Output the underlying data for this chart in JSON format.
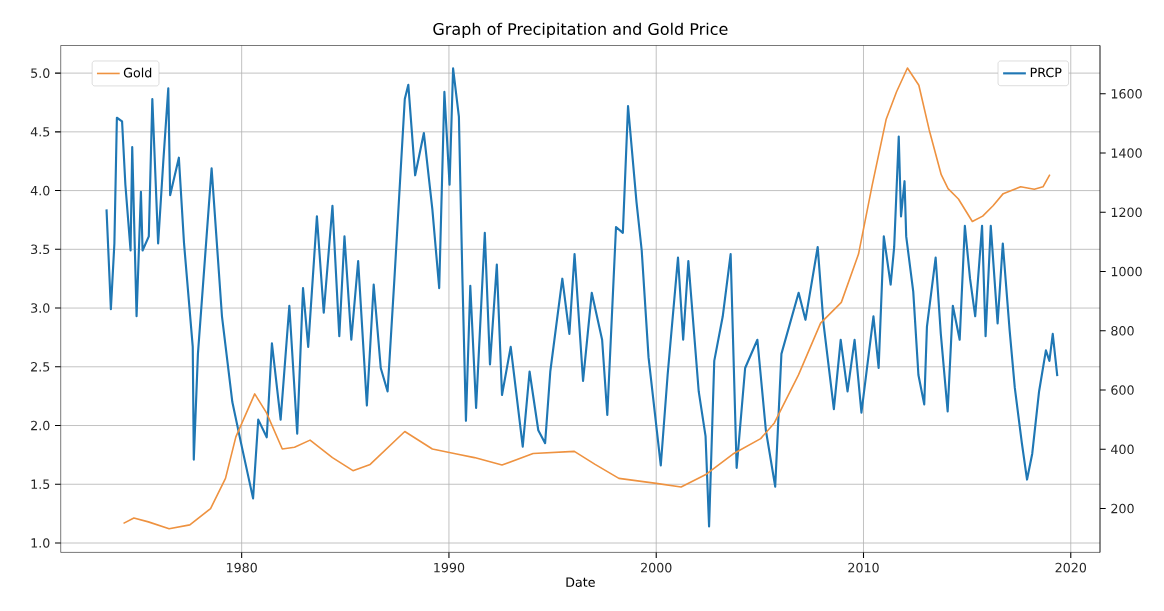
{
  "chart_data": {
    "type": "line",
    "title": "Graph of Precipitation and Gold Price",
    "xlabel": "Date",
    "xlim": [
      1971.27,
      2021.41
    ],
    "xticks": [
      1980,
      1990,
      2000,
      2010,
      2020
    ],
    "ylim": [
      0.92,
      5.235
    ],
    "yticks": [
      {
        "value": 1,
        "label": "1.0"
      },
      1.5,
      {
        "value": 2,
        "label": "2.0"
      },
      2.5,
      {
        "value": 3,
        "label": "3.0"
      },
      3.5,
      {
        "value": 4,
        "label": "4.0"
      },
      4.5,
      {
        "value": 5,
        "label": "5.0"
      }
    ],
    "y2lim": [
      52,
      1763
    ],
    "y2ticks": [
      200,
      400,
      600,
      800,
      1000,
      1200,
      1400,
      1600
    ],
    "grid": true,
    "legend": "top",
    "series": [
      {
        "name": "PRCP",
        "color": "#1f77b4",
        "axis": "y",
        "x": [
          1973.48,
          1973.69,
          1973.86,
          1973.98,
          1974.23,
          1974.39,
          1974.64,
          1974.72,
          1974.93,
          1975.14,
          1975.22,
          1975.52,
          1975.69,
          1975.97,
          1976.22,
          1976.46,
          1976.55,
          1976.97,
          1977.22,
          1977.64,
          1977.69,
          1977.89,
          1978.55,
          1979.05,
          1979.55,
          1979.97,
          1980.55,
          1980.8,
          1981.21,
          1981.46,
          1981.88,
          1982.3,
          1982.68,
          1982.96,
          1983.21,
          1983.63,
          1983.96,
          1984.38,
          1984.71,
          1984.96,
          1985.29,
          1985.62,
          1986.04,
          1986.37,
          1986.71,
          1987.04,
          1987.37,
          1987.87,
          1988.04,
          1988.37,
          1988.79,
          1989.2,
          1989.53,
          1989.78,
          1990.03,
          1990.2,
          1990.48,
          1990.65,
          1990.82,
          1991.03,
          1991.31,
          1991.73,
          1991.98,
          1992.31,
          1992.56,
          1992.98,
          1993.56,
          1993.89,
          1994.31,
          1994.64,
          1994.89,
          1995.47,
          1995.81,
          1996.06,
          1996.47,
          1996.89,
          1997.39,
          1997.64,
          1998.06,
          1998.39,
          1998.64,
          1999.05,
          1999.3,
          1999.63,
          2000.22,
          2000.55,
          2001.05,
          2001.3,
          2001.55,
          2002.05,
          2002.38,
          2002.55,
          2002.8,
          2003.21,
          2003.59,
          2003.88,
          2004.29,
          2004.88,
          2005.29,
          2005.74,
          2006.04,
          2006.87,
          2007.2,
          2007.79,
          2008.07,
          2008.57,
          2008.9,
          2009.23,
          2009.57,
          2009.9,
          2010.48,
          2010.73,
          2010.98,
          2011.31,
          2011.48,
          2011.7,
          2011.81,
          2011.98,
          2012.06,
          2012.4,
          2012.65,
          2012.93,
          2013.06,
          2013.48,
          2013.73,
          2014.06,
          2014.31,
          2014.64,
          2014.89,
          2015.14,
          2015.39,
          2015.72,
          2015.89,
          2016.14,
          2016.47,
          2016.72,
          2017.05,
          2017.3,
          2017.64,
          2017.89,
          2018.14,
          2018.47,
          2018.8,
          2018.97,
          2019.13,
          2019.35
        ],
        "values": [
          3.84,
          2.99,
          3.55,
          4.62,
          4.59,
          4.05,
          3.49,
          4.37,
          2.93,
          3.99,
          3.49,
          3.61,
          4.78,
          3.55,
          4.25,
          4.87,
          3.96,
          4.28,
          3.55,
          2.67,
          1.71,
          2.61,
          4.19,
          2.93,
          2.2,
          1.85,
          1.38,
          2.05,
          1.9,
          2.7,
          2.05,
          3.02,
          1.93,
          3.17,
          2.67,
          3.78,
          2.96,
          3.87,
          2.76,
          3.61,
          2.73,
          3.4,
          2.17,
          3.2,
          2.49,
          2.29,
          3.25,
          4.78,
          4.9,
          4.13,
          4.49,
          3.84,
          3.17,
          4.84,
          4.05,
          5.04,
          4.63,
          3.25,
          2.04,
          3.19,
          2.15,
          3.64,
          2.52,
          3.37,
          2.26,
          2.67,
          1.82,
          2.46,
          1.96,
          1.85,
          2.46,
          3.25,
          2.78,
          3.46,
          2.38,
          3.13,
          2.73,
          2.09,
          3.69,
          3.64,
          4.72,
          3.9,
          3.49,
          2.58,
          1.66,
          2.43,
          3.43,
          2.73,
          3.4,
          2.29,
          1.91,
          1.14,
          2.55,
          2.93,
          3.46,
          1.64,
          2.49,
          2.73,
          1.96,
          1.48,
          2.61,
          3.13,
          2.9,
          3.52,
          2.87,
          2.14,
          2.73,
          2.29,
          2.73,
          2.11,
          2.93,
          2.49,
          3.61,
          3.2,
          3.52,
          4.46,
          3.78,
          4.08,
          3.61,
          3.14,
          2.43,
          2.18,
          2.84,
          3.43,
          2.78,
          2.12,
          3.02,
          2.73,
          3.7,
          3.25,
          2.93,
          3.7,
          2.76,
          3.7,
          2.87,
          3.55,
          2.81,
          2.32,
          1.85,
          1.54,
          1.76,
          2.29,
          2.64,
          2.55,
          2.78,
          2.42
        ]
      },
      {
        "name": "Gold",
        "color": "#ee9240",
        "axis": "y2",
        "x": [
          1974.3,
          1974.8,
          1975.5,
          1976.5,
          1977.5,
          1978.5,
          1979.22,
          1979.72,
          1980.63,
          1981.2,
          1981.96,
          1982.55,
          1983.3,
          1984.38,
          1985.37,
          1986.2,
          1987.87,
          1989.2,
          1990.37,
          1991.23,
          1992.56,
          1994.06,
          1996.05,
          1997.05,
          1998.2,
          2000.0,
          2001.2,
          2002.37,
          2003.7,
          2005.04,
          2005.7,
          2006.87,
          2007.93,
          2008.93,
          2009.76,
          2010.42,
          2011.09,
          2011.59,
          2012.12,
          2012.67,
          2013.17,
          2013.75,
          2014.08,
          2014.58,
          2015.25,
          2015.75,
          2016.25,
          2016.74,
          2017.58,
          2018.24,
          2018.66,
          2018.99
        ],
        "values": [
          150,
          168,
          155,
          132,
          145,
          200,
          302,
          442,
          587,
          523,
          401,
          407,
          431,
          372,
          328,
          349,
          460,
          401,
          384,
          372,
          347,
          386,
          393,
          349,
          302,
          285,
          273,
          314,
          384,
          436,
          489,
          652,
          826,
          896,
          1059,
          1292,
          1513,
          1606,
          1687,
          1629,
          1478,
          1327,
          1280,
          1245,
          1169,
          1187,
          1222,
          1263,
          1286,
          1278,
          1286,
          1327
        ]
      }
    ]
  }
}
